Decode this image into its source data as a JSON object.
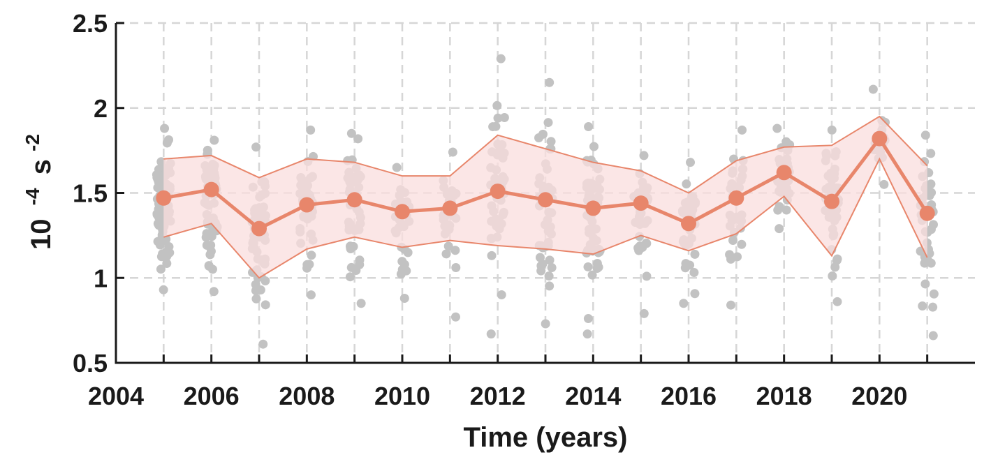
{
  "chart_data": {
    "type": "line",
    "title": "",
    "xlabel": "Time (years)",
    "ylabel": "10 -4 s -2",
    "ylabel_base": "10",
    "ylabel_exp1": "-4",
    "ylabel_unit": "s",
    "ylabel_exp2": "-2",
    "xlim": [
      2004,
      2022
    ],
    "ylim": [
      0.5,
      2.5
    ],
    "xticks": [
      2004,
      2006,
      2008,
      2010,
      2012,
      2014,
      2016,
      2018,
      2020
    ],
    "xtick_labels": [
      "2004",
      "2006",
      "2008",
      "2010",
      "2012",
      "2014",
      "2016",
      "2018",
      "2020"
    ],
    "yticks": [
      0.5,
      1,
      1.5,
      2,
      2.5
    ],
    "ytick_labels": [
      "0.5",
      "1",
      "1.5",
      "2",
      "2.5"
    ],
    "grid": true,
    "colors": {
      "mean": "#e8866b",
      "band": "#f9dede",
      "points": "#c2c2c2"
    },
    "years": [
      2005,
      2006,
      2007,
      2008,
      2009,
      2010,
      2011,
      2012,
      2013,
      2014,
      2015,
      2016,
      2017,
      2018,
      2019,
      2020,
      2021
    ],
    "mean": [
      1.47,
      1.52,
      1.29,
      1.43,
      1.46,
      1.39,
      1.41,
      1.51,
      1.46,
      1.41,
      1.44,
      1.32,
      1.47,
      1.62,
      1.45,
      1.82,
      1.38
    ],
    "upper": [
      1.7,
      1.72,
      1.59,
      1.7,
      1.68,
      1.6,
      1.6,
      1.84,
      1.76,
      1.68,
      1.63,
      1.5,
      1.69,
      1.77,
      1.78,
      1.95,
      1.66
    ],
    "lower": [
      1.24,
      1.32,
      1.0,
      1.17,
      1.24,
      1.18,
      1.22,
      1.19,
      1.17,
      1.14,
      1.25,
      1.16,
      1.26,
      1.48,
      1.13,
      1.7,
      1.12
    ],
    "scatter": [
      {
        "year": 2005,
        "min": 0.93,
        "max": 1.88,
        "n": 90
      },
      {
        "year": 2006,
        "min": 0.92,
        "max": 1.81,
        "n": 60
      },
      {
        "year": 2007,
        "min": 0.61,
        "max": 1.77,
        "n": 60
      },
      {
        "year": 2008,
        "min": 0.9,
        "max": 1.87,
        "n": 40
      },
      {
        "year": 2009,
        "min": 0.85,
        "max": 1.85,
        "n": 45
      },
      {
        "year": 2010,
        "min": 0.88,
        "max": 1.65,
        "n": 30
      },
      {
        "year": 2011,
        "min": 0.77,
        "max": 1.74,
        "n": 30
      },
      {
        "year": 2012,
        "min": 0.67,
        "max": 2.29,
        "n": 45
      },
      {
        "year": 2013,
        "min": 0.73,
        "max": 2.15,
        "n": 45
      },
      {
        "year": 2014,
        "min": 0.67,
        "max": 1.89,
        "n": 60
      },
      {
        "year": 2015,
        "min": 0.79,
        "max": 1.72,
        "n": 35
      },
      {
        "year": 2016,
        "min": 0.85,
        "max": 1.68,
        "n": 40
      },
      {
        "year": 2017,
        "min": 0.84,
        "max": 1.87,
        "n": 35
      },
      {
        "year": 2018,
        "min": 1.29,
        "max": 1.88,
        "n": 30
      },
      {
        "year": 2019,
        "min": 0.86,
        "max": 1.87,
        "n": 45
      },
      {
        "year": 2020,
        "min": 1.55,
        "max": 2.11,
        "n": 20
      },
      {
        "year": 2021,
        "min": 0.66,
        "max": 1.84,
        "n": 40
      }
    ]
  }
}
